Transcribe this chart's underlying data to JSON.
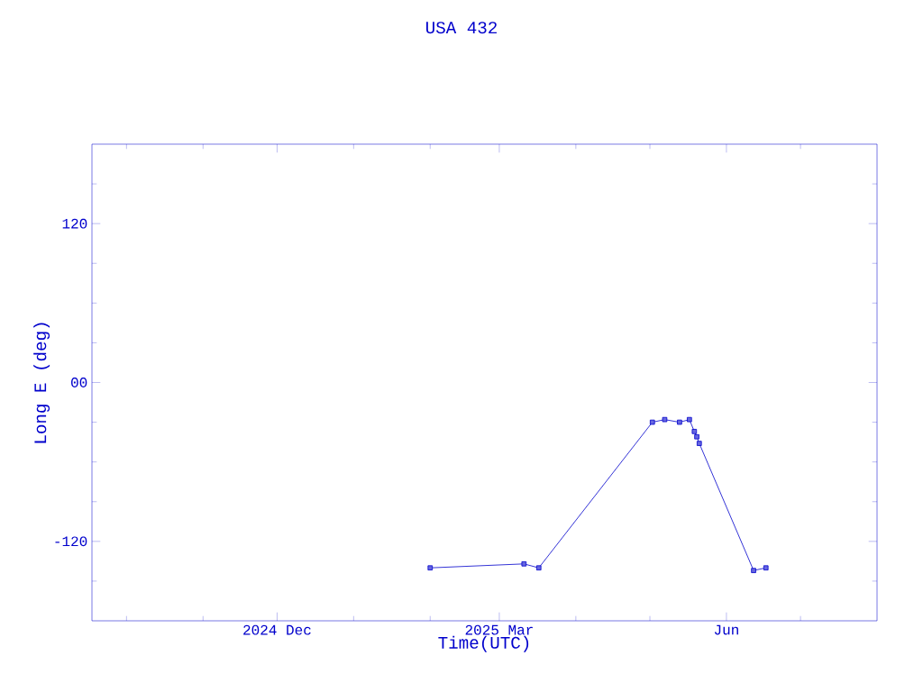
{
  "chart_data": {
    "type": "line",
    "title": "USA 432",
    "xlabel": "Time(UTC)",
    "ylabel": "Long E (deg)",
    "x": [
      "2025-02-01",
      "2025-03-11",
      "2025-03-17",
      "2025-05-02",
      "2025-05-07",
      "2025-05-13",
      "2025-05-17",
      "2025-05-19",
      "2025-05-20",
      "2025-05-21",
      "2025-06-12",
      "2025-06-17"
    ],
    "series": [
      {
        "color": "#0000cc",
        "values": [
          -140,
          -137,
          -140,
          -30,
          -28,
          -30,
          -28,
          -37,
          -41,
          -46,
          -142,
          -140
        ]
      }
    ],
    "xlim": [
      "2024-09-17",
      "2025-08-01"
    ],
    "xticks": [
      {
        "value": "2024-10-01",
        "label": null
      },
      {
        "value": "2024-11-01",
        "label": null
      },
      {
        "value": "2024-12-01",
        "label": "2024 Dec"
      },
      {
        "value": "2025-01-01",
        "label": null
      },
      {
        "value": "2025-02-01",
        "label": null
      },
      {
        "value": "2025-03-01",
        "label": "2025 Mar"
      },
      {
        "value": "2025-04-01",
        "label": null
      },
      {
        "value": "2025-05-01",
        "label": null
      },
      {
        "value": "2025-06-01",
        "label": "Jun"
      },
      {
        "value": "2025-07-01",
        "label": null
      }
    ],
    "ylim": [
      -180,
      180
    ],
    "yticks": [
      {
        "value": -150,
        "label": null
      },
      {
        "value": -120,
        "label": "-120"
      },
      {
        "value": -90,
        "label": null
      },
      {
        "value": -60,
        "label": null
      },
      {
        "value": -30,
        "label": null
      },
      {
        "value": 0,
        "label": "00"
      },
      {
        "value": 30,
        "label": null
      },
      {
        "value": 60,
        "label": null
      },
      {
        "value": 90,
        "label": null
      },
      {
        "value": 120,
        "label": "120"
      },
      {
        "value": 150,
        "label": null
      }
    ],
    "marker": "square",
    "line_style": "solid",
    "grid": false
  }
}
